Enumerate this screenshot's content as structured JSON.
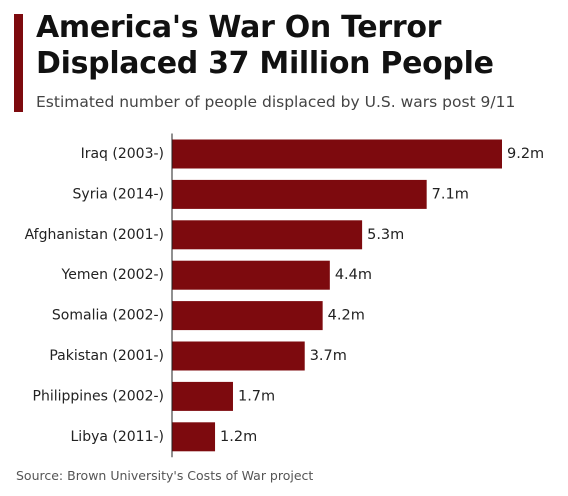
{
  "header": {
    "title": "America's War On Terror Displaced 37 Million People",
    "subtitle": "Estimated number of people displaced by U.S. wars post 9/11"
  },
  "footer": {
    "source": "Source: Brown University's Costs of War project"
  },
  "colors": {
    "bar": "#7d0a0e",
    "accent": "#7d0a0e",
    "axis": "#222222",
    "text": "#222222"
  },
  "chart_data": {
    "type": "bar",
    "orientation": "horizontal",
    "categories": [
      "Iraq (2003-)",
      "Syria (2014-)",
      "Afghanistan (2001-)",
      "Yemen (2002-)",
      "Somalia (2002-)",
      "Pakistan (2001-)",
      "Philippines (2002-)",
      "Libya (2011-)"
    ],
    "values": [
      9.2,
      7.1,
      5.3,
      4.4,
      4.2,
      3.7,
      1.7,
      1.2
    ],
    "value_labels": [
      "9.2m",
      "7.1m",
      "5.3m",
      "4.4m",
      "4.2m",
      "3.7m",
      "1.7m",
      "1.2m"
    ],
    "title": "America's War On Terror Displaced 37 Million People",
    "subtitle": "Estimated number of people displaced by U.S. wars post 9/11",
    "xlabel": "",
    "ylabel": "",
    "xlim": [
      0,
      9.2
    ],
    "grid": false,
    "legend": "none"
  }
}
